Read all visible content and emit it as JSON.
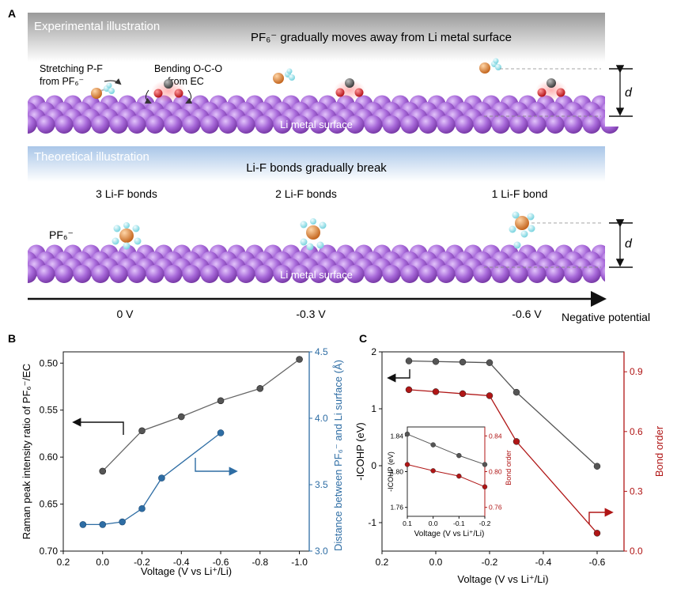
{
  "panels": {
    "a": "A",
    "b": "B",
    "c": "C"
  },
  "panel_a": {
    "exp_header": "Experimental illustration",
    "exp_title": "PF₆⁻ gradually moves away from Li metal surface",
    "stretch_label_1": "Stretching P-F",
    "stretch_label_2": "from PF₆⁻",
    "bend_label_1": "Bending O-C-O",
    "bend_label_2": "from EC",
    "surface_label": "Li metal surface",
    "d_label": "d",
    "theo_header": "Theoretical illustration",
    "theo_title": "Li-F bonds gradually break",
    "bonds": [
      "3 Li-F bonds",
      "2 Li-F bonds",
      "1 Li-F bond"
    ],
    "pf6_label": "PF₆⁻",
    "potentials": [
      "0 V",
      "-0.3 V",
      "-0.6 V"
    ],
    "axis_label": "Negative potential",
    "colors": {
      "li": "#a768d9",
      "p": "#e07d2a",
      "f": "#8fe3ec",
      "c": "#555555",
      "o": "#e0181e"
    }
  },
  "chart_data": [
    {
      "type": "line",
      "panel": "B",
      "xlabel": "Voltage (V vs Li⁺/Li)",
      "x_ticks": [
        "0.2",
        "0.0",
        "-0.2",
        "-0.4",
        "-0.6",
        "-0.8",
        "-1.0"
      ],
      "xlim": [
        0.2,
        -1.05
      ],
      "ylabel_left": "Raman peak intensity ratio of PF₆⁻/EC",
      "y_left_ticks": [
        "0.50",
        "0.55",
        "0.60",
        "0.65",
        "0.70"
      ],
      "ylim_left": [
        0.7,
        0.488
      ],
      "y_left_inverted": true,
      "ylabel_right": "Distance between PF₆⁻ and Li surface (Å)",
      "y_right_ticks": [
        "3.0",
        "3.5",
        "4.0",
        "4.5"
      ],
      "ylim_right": [
        3.0,
        4.5
      ],
      "series": [
        {
          "axis": "left",
          "color": "#555555",
          "x": [
            0.0,
            -0.2,
            -0.4,
            -0.6,
            -0.8,
            -1.0
          ],
          "y": [
            0.615,
            0.572,
            0.557,
            0.54,
            0.527,
            0.496
          ]
        },
        {
          "axis": "right",
          "color": "#2e6da4",
          "x": [
            0.1,
            0.0,
            -0.1,
            -0.2,
            -0.3,
            -0.6
          ],
          "y": [
            3.2,
            3.2,
            3.22,
            3.32,
            3.55,
            3.89
          ]
        }
      ]
    },
    {
      "type": "line",
      "panel": "C",
      "xlabel": "Voltage (V vs Li⁺/Li)",
      "x_ticks": [
        "0.2",
        "0.0",
        "-0.2",
        "-0.4",
        "-0.6"
      ],
      "xlim": [
        0.2,
        -0.7
      ],
      "ylabel_left": "-ICOHP (eV)",
      "y_left_ticks": [
        "-1",
        "0",
        "1",
        "2"
      ],
      "ylim_left": [
        -1.5,
        2.0
      ],
      "ylabel_right": "Bond order",
      "y_right_ticks": [
        "0.0",
        "0.3",
        "0.6",
        "0.9"
      ],
      "ylim_right": [
        0.0,
        1.0
      ],
      "series": [
        {
          "axis": "left",
          "color": "#555555",
          "x": [
            0.1,
            0.0,
            -0.1,
            -0.2,
            -0.3,
            -0.6
          ],
          "y": [
            1.84,
            1.83,
            1.82,
            1.81,
            1.29,
            -0.01
          ]
        },
        {
          "axis": "right",
          "color": "#b01616",
          "x": [
            0.1,
            0.0,
            -0.1,
            -0.2,
            -0.3,
            -0.6
          ],
          "y": [
            0.81,
            0.8,
            0.79,
            0.78,
            0.55,
            0.09
          ]
        }
      ],
      "inset": {
        "xlabel": "Voltage (V vs Li⁺/Li)",
        "x_ticks": [
          "0.1",
          "0.0",
          "-0.1",
          "-0.2"
        ],
        "xlim": [
          0.1,
          -0.2
        ],
        "ylabel_left": "-ICOHP (eV)",
        "y_left_ticks": [
          "1.76",
          "1.80",
          "1.84"
        ],
        "ylim_left": [
          1.75,
          1.85
        ],
        "ylabel_right": "Bond order",
        "y_right_ticks": [
          "0.76",
          "0.80",
          "0.84"
        ],
        "ylim_right": [
          0.75,
          0.85
        ],
        "series": [
          {
            "axis": "left",
            "color": "#555555",
            "x": [
              0.1,
              0.0,
              -0.1,
              -0.2
            ],
            "y": [
              1.842,
              1.83,
              1.818,
              1.808
            ]
          },
          {
            "axis": "right",
            "color": "#b01616",
            "x": [
              0.1,
              0.0,
              -0.1,
              -0.2
            ],
            "y": [
              0.808,
              0.801,
              0.795,
              0.783
            ]
          }
        ]
      }
    }
  ]
}
